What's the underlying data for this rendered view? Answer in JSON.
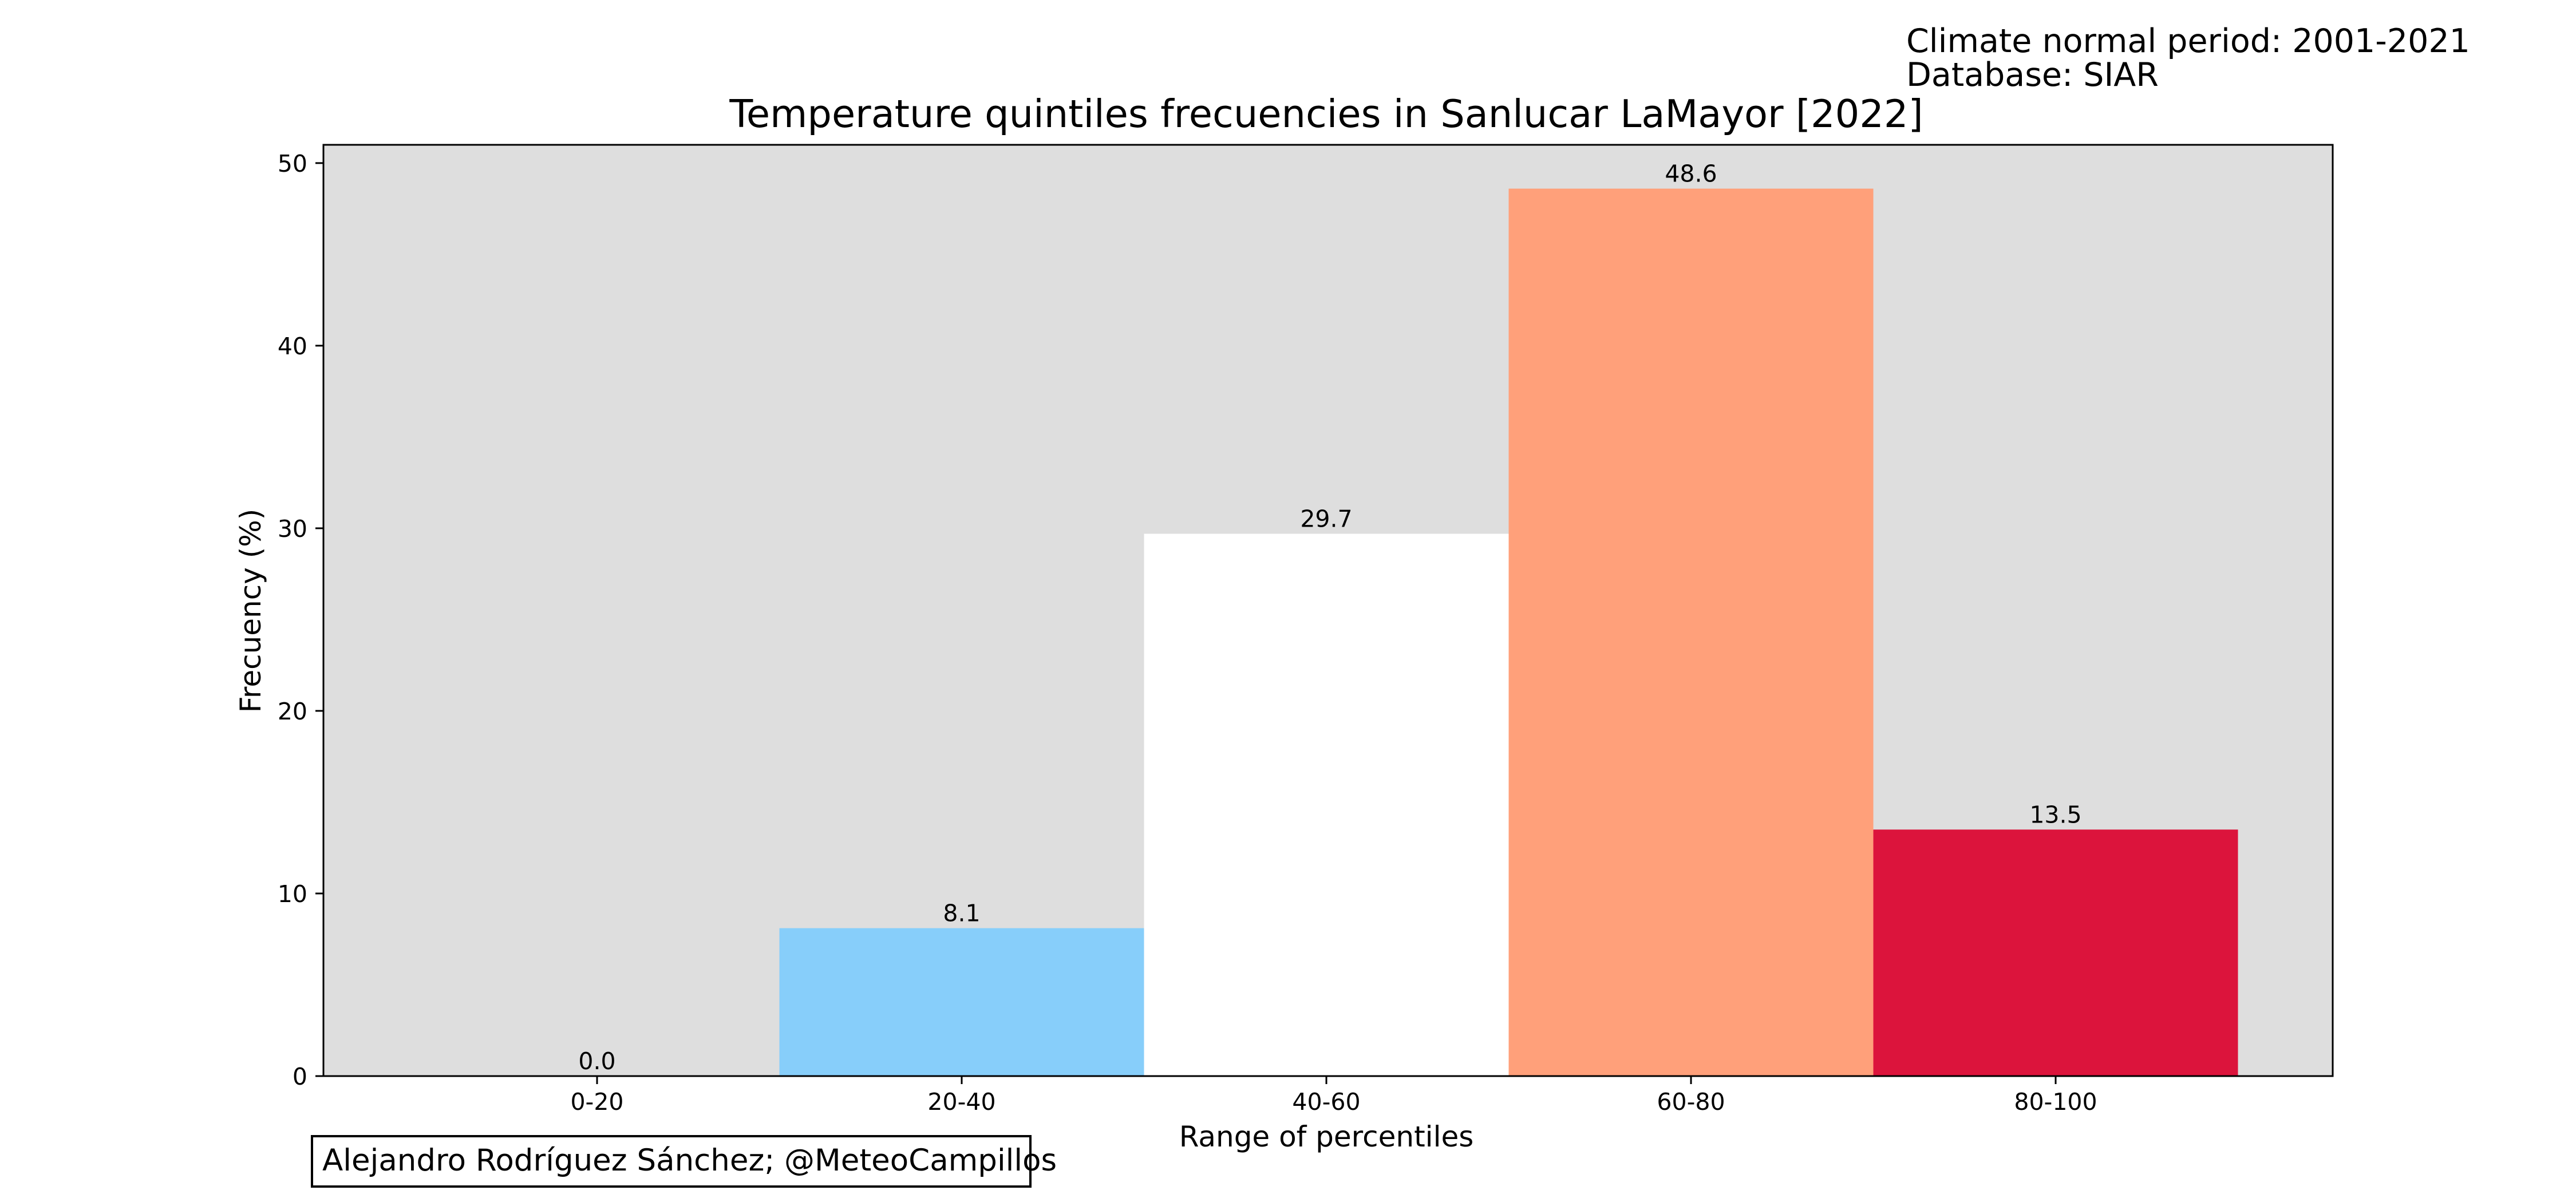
{
  "header": {
    "climate_period": "Climate normal period: 2001-2021",
    "database": "Database: SIAR"
  },
  "credit": "Alejandro Rodríguez Sánchez; @MeteoCampillos",
  "colors": {
    "plot_background": "#dedede",
    "bars": [
      "#87cefa",
      "#87cefa",
      "#ffffff",
      "#ffa07a",
      "#dc143c"
    ]
  },
  "chart_data": {
    "type": "bar",
    "title": "Temperature quintiles frecuencies in Sanlucar LaMayor [2022]",
    "xlabel": "Range of percentiles",
    "ylabel": "Frecuency (%)",
    "categories": [
      "0-20",
      "20-40",
      "40-60",
      "60-80",
      "80-100"
    ],
    "values": [
      0.0,
      8.1,
      29.7,
      48.6,
      13.5
    ],
    "value_labels": [
      "0.0",
      "8.1",
      "29.7",
      "48.6",
      "13.5"
    ],
    "ylim": [
      0,
      51
    ],
    "yticks": [
      0,
      10,
      20,
      30,
      40,
      50
    ],
    "grid": false,
    "legend": false
  }
}
